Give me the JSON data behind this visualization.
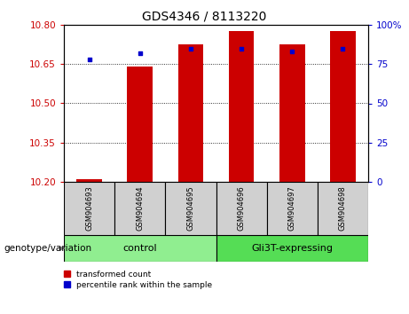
{
  "title": "GDS4346 / 8113220",
  "samples": [
    "GSM904693",
    "GSM904694",
    "GSM904695",
    "GSM904696",
    "GSM904697",
    "GSM904698"
  ],
  "transformed_count": [
    10.21,
    10.64,
    10.725,
    10.775,
    10.725,
    10.775
  ],
  "percentile_rank": [
    78,
    82,
    85,
    85,
    83,
    85
  ],
  "ylim_left": [
    10.2,
    10.8
  ],
  "ylim_right": [
    0,
    100
  ],
  "yticks_left": [
    10.2,
    10.35,
    10.5,
    10.65,
    10.8
  ],
  "yticks_right": [
    0,
    25,
    50,
    75,
    100
  ],
  "bar_color": "#cc0000",
  "dot_color": "#0000cc",
  "bar_width": 0.5,
  "groups": [
    {
      "label": "control",
      "samples": [
        0,
        1,
        2
      ],
      "color": "#90ee90"
    },
    {
      "label": "Gli3T-expressing",
      "samples": [
        3,
        4,
        5
      ],
      "color": "#55dd55"
    }
  ],
  "group_label": "genotype/variation",
  "legend_red": "transformed count",
  "legend_blue": "percentile rank within the sample",
  "bg_color": "#ffffff",
  "plot_bg": "#ffffff",
  "tick_color_left": "#cc0000",
  "tick_color_right": "#0000cc",
  "title_fontsize": 10,
  "tick_fontsize": 7.5,
  "sample_label_fontsize": 6,
  "group_fontsize": 8,
  "genotype_fontsize": 7.5,
  "legend_fontsize": 6.5
}
